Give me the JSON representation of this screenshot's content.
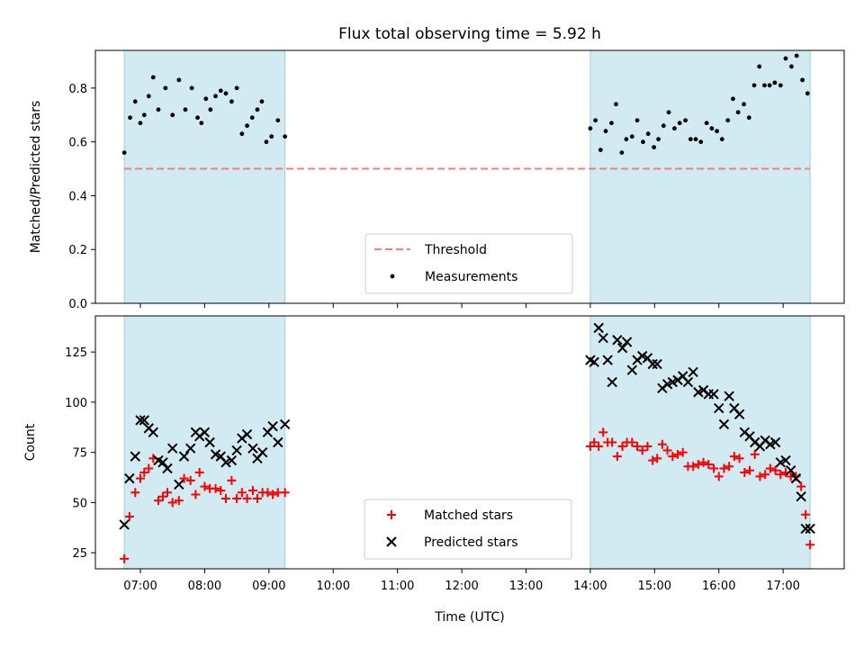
{
  "chart_data": {
    "title": "Flux total observing time = 5.92 h",
    "xlabel": "Time (UTC)",
    "x_ticks": [
      "07:00",
      "08:00",
      "09:00",
      "10:00",
      "11:00",
      "12:00",
      "13:00",
      "14:00",
      "15:00",
      "16:00",
      "17:00"
    ],
    "x_tick_hours": [
      7,
      8,
      9,
      10,
      11,
      12,
      13,
      14,
      15,
      16,
      17
    ],
    "xlim": [
      6.3,
      17.95
    ],
    "shaded_intervals": [
      [
        6.75,
        9.25
      ],
      [
        14.0,
        17.42
      ]
    ],
    "colors": {
      "shade": "#add8e6",
      "threshold": "#f08080",
      "matched": "#ff0000",
      "predicted": "#000000",
      "measurement": "#000000"
    },
    "panels": [
      {
        "type": "scatter",
        "ylabel": "Matched/Predicted stars",
        "ylim": [
          0,
          0.94
        ],
        "y_ticks": [
          "0.0",
          "0.2",
          "0.4",
          "0.6",
          "0.8"
        ],
        "y_tick_values": [
          0,
          0.2,
          0.4,
          0.6,
          0.8
        ],
        "threshold": {
          "name": "Threshold",
          "value": 0.5
        },
        "legend_position": "lower-center",
        "series": [
          {
            "name": "Measurements",
            "x": [
              6.75,
              6.84,
              6.92,
              7.0,
              7.06,
              7.13,
              7.2,
              7.28,
              7.39,
              7.5,
              7.6,
              7.7,
              7.8,
              7.89,
              7.95,
              8.02,
              8.09,
              8.17,
              8.25,
              8.33,
              8.42,
              8.5,
              8.58,
              8.66,
              8.74,
              8.82,
              8.89,
              8.96,
              9.04,
              9.14,
              9.25,
              14.0,
              14.08,
              14.16,
              14.24,
              14.33,
              14.4,
              14.49,
              14.56,
              14.65,
              14.73,
              14.82,
              14.9,
              14.99,
              15.06,
              15.14,
              15.22,
              15.31,
              15.39,
              15.48,
              15.56,
              15.64,
              15.72,
              15.81,
              15.89,
              15.97,
              16.05,
              16.14,
              16.22,
              16.3,
              16.39,
              16.47,
              16.55,
              16.63,
              16.71,
              16.79,
              16.87,
              16.96,
              17.04,
              17.13,
              17.21,
              17.3,
              17.38
            ],
            "y": [
              0.56,
              0.69,
              0.75,
              0.67,
              0.7,
              0.77,
              0.84,
              0.72,
              0.8,
              0.7,
              0.83,
              0.72,
              0.8,
              0.69,
              0.67,
              0.76,
              0.72,
              0.77,
              0.79,
              0.78,
              0.75,
              0.8,
              0.63,
              0.66,
              0.69,
              0.72,
              0.75,
              0.6,
              0.62,
              0.68,
              0.62,
              0.65,
              0.68,
              0.57,
              0.64,
              0.67,
              0.74,
              0.56,
              0.61,
              0.62,
              0.68,
              0.6,
              0.63,
              0.58,
              0.61,
              0.66,
              0.71,
              0.65,
              0.67,
              0.68,
              0.61,
              0.61,
              0.6,
              0.67,
              0.65,
              0.64,
              0.61,
              0.68,
              0.76,
              0.71,
              0.74,
              0.69,
              0.81,
              0.88,
              0.81,
              0.81,
              0.82,
              0.81,
              0.91,
              0.88,
              0.92,
              0.83,
              0.78
            ]
          }
        ]
      },
      {
        "type": "scatter",
        "ylabel": "Count",
        "ylim": [
          17,
          143
        ],
        "y_ticks": [
          "25",
          "50",
          "75",
          "100",
          "125"
        ],
        "y_tick_values": [
          25,
          50,
          75,
          100,
          125
        ],
        "legend_position": "lower-center",
        "x": [
          6.75,
          6.83,
          6.92,
          7.0,
          7.06,
          7.13,
          7.2,
          7.28,
          7.35,
          7.42,
          7.5,
          7.6,
          7.68,
          7.78,
          7.86,
          7.92,
          8.0,
          8.08,
          8.17,
          8.25,
          8.33,
          8.42,
          8.5,
          8.58,
          8.66,
          8.75,
          8.82,
          8.9,
          8.98,
          9.06,
          9.14,
          9.25,
          14.0,
          14.06,
          14.13,
          14.2,
          14.27,
          14.34,
          14.42,
          14.5,
          14.57,
          14.65,
          14.73,
          14.81,
          14.89,
          14.97,
          15.04,
          15.12,
          15.2,
          15.28,
          15.36,
          15.44,
          15.52,
          15.6,
          15.68,
          15.76,
          15.84,
          15.92,
          16.0,
          16.08,
          16.16,
          16.24,
          16.32,
          16.4,
          16.48,
          16.56,
          16.64,
          16.72,
          16.8,
          16.88,
          16.96,
          17.04,
          17.12,
          17.2,
          17.28,
          17.35,
          17.42
        ],
        "series": [
          {
            "name": "Matched stars",
            "y": [
              22,
              43,
              55,
              62,
              65,
              67,
              72,
              51,
              53,
              55,
              50,
              51,
              62,
              61,
              54,
              65,
              58,
              57,
              57,
              56,
              52,
              61,
              52,
              55,
              52,
              56,
              52,
              55,
              55,
              54,
              55,
              55,
              78,
              80,
              78,
              85,
              80,
              80,
              73,
              78,
              80,
              80,
              78,
              76,
              78,
              71,
              72,
              79,
              76,
              73,
              74,
              75,
              68,
              68,
              69,
              70,
              69,
              67,
              63,
              67,
              68,
              73,
              72,
              65,
              66,
              74,
              63,
              64,
              67,
              66,
              64,
              65,
              63,
              63,
              58,
              44,
              29
            ]
          },
          {
            "name": "Predicted stars",
            "y": [
              39,
              62,
              73,
              91,
              91,
              87,
              85,
              71,
              70,
              67,
              77,
              59,
              73,
              77,
              85,
              83,
              85,
              80,
              74,
              73,
              70,
              71,
              76,
              82,
              84,
              77,
              72,
              75,
              85,
              88,
              80,
              89,
              121,
              120,
              137,
              132,
              121,
              110,
              131,
              127,
              130,
              116,
              121,
              123,
              122,
              119,
              119,
              107,
              109,
              110,
              111,
              113,
              110,
              115,
              105,
              106,
              104,
              104,
              97,
              89,
              103,
              97,
              94,
              85,
              83,
              80,
              78,
              81,
              79,
              80,
              70,
              71,
              66,
              62,
              53,
              37,
              37
            ]
          }
        ]
      }
    ]
  }
}
